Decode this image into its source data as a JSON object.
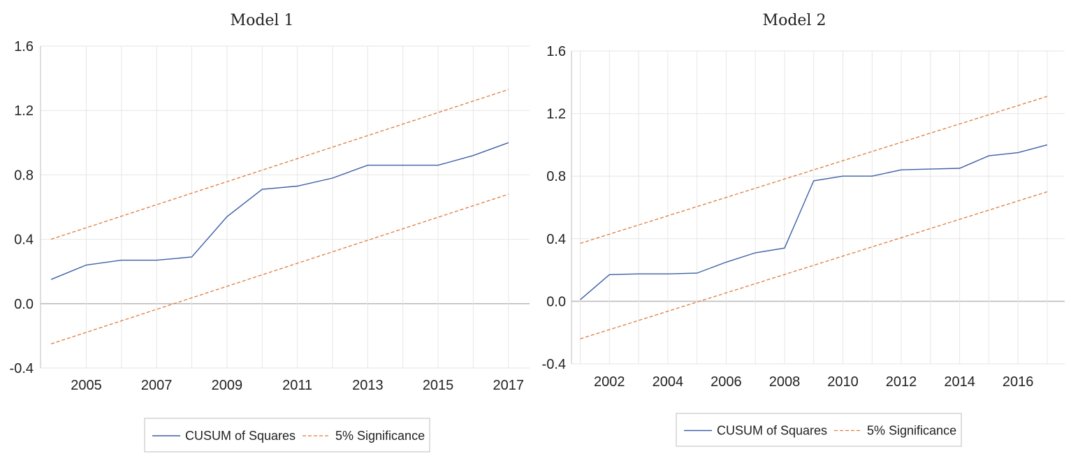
{
  "colors": {
    "cusum": "#3d5fa6",
    "significance": "#e07b3a",
    "grid": "#e6e6e6",
    "zero_line": "#bdbdbd",
    "legend_border": "#bdbdbd"
  },
  "chart_data": [
    {
      "type": "line",
      "title": "Model 1",
      "xlabel": "",
      "ylabel": "",
      "xlim": [
        2003.7,
        2017.6
      ],
      "ylim": [
        -0.4,
        1.6
      ],
      "y_ticks": [
        "1.6",
        "1.2",
        "0.8",
        "0.4",
        "0.0",
        "-0.4"
      ],
      "y_tick_values": [
        1.6,
        1.2,
        0.8,
        0.4,
        0.0,
        -0.4
      ],
      "x_ticks": [
        "2005",
        "2007",
        "2009",
        "2011",
        "2013",
        "2015",
        "2017"
      ],
      "x_tick_values": [
        2005,
        2007,
        2009,
        2011,
        2013,
        2015,
        2017
      ],
      "x_gridlines": [
        2006,
        2008,
        2010,
        2012,
        2014,
        2016
      ],
      "grid": true,
      "legend_position": "bottom",
      "series": [
        {
          "name": "CUSUM of Squares",
          "style": "solid",
          "x": [
            2004,
            2005,
            2006,
            2007,
            2008,
            2009,
            2010,
            2011,
            2012,
            2013,
            2014,
            2015,
            2016,
            2017
          ],
          "y": [
            0.15,
            0.24,
            0.27,
            0.27,
            0.29,
            0.54,
            0.71,
            0.73,
            0.78,
            0.86,
            0.86,
            0.86,
            0.92,
            1.0
          ]
        },
        {
          "name": "5% Significance",
          "style": "dashed",
          "x": [
            2004,
            2017
          ],
          "y": [
            0.4,
            1.33
          ]
        },
        {
          "name": "5% Significance",
          "style": "dashed",
          "x": [
            2004,
            2017
          ],
          "y": [
            -0.25,
            0.68
          ]
        }
      ]
    },
    {
      "type": "line",
      "title": "Model 2",
      "xlabel": "",
      "ylabel": "",
      "xlim": [
        2000.7,
        2017.6
      ],
      "ylim": [
        -0.4,
        1.6
      ],
      "y_ticks": [
        "1.6",
        "1.2",
        "0.8",
        "0.4",
        "0.0",
        "-0.4"
      ],
      "y_tick_values": [
        1.6,
        1.2,
        0.8,
        0.4,
        0.0,
        -0.4
      ],
      "x_ticks": [
        "2002",
        "2004",
        "2006",
        "2008",
        "2010",
        "2012",
        "2014",
        "2016"
      ],
      "x_tick_values": [
        2002,
        2004,
        2006,
        2008,
        2010,
        2012,
        2014,
        2016
      ],
      "x_gridlines": [
        2001,
        2003,
        2005,
        2007,
        2009,
        2011,
        2013,
        2015,
        2017
      ],
      "grid": true,
      "legend_position": "bottom",
      "series": [
        {
          "name": "CUSUM of Squares",
          "style": "solid",
          "x": [
            2001,
            2002,
            2003,
            2004,
            2005,
            2006,
            2007,
            2008,
            2009,
            2010,
            2011,
            2012,
            2013,
            2014,
            2015,
            2016,
            2017
          ],
          "y": [
            0.01,
            0.17,
            0.175,
            0.175,
            0.18,
            0.25,
            0.31,
            0.34,
            0.77,
            0.8,
            0.8,
            0.84,
            0.845,
            0.85,
            0.93,
            0.95,
            1.0
          ]
        },
        {
          "name": "5% Significance",
          "style": "dashed",
          "x": [
            2001,
            2017
          ],
          "y": [
            0.37,
            1.31
          ]
        },
        {
          "name": "5% Significance",
          "style": "dashed",
          "x": [
            2001,
            2017
          ],
          "y": [
            -0.24,
            0.7
          ]
        }
      ]
    }
  ]
}
